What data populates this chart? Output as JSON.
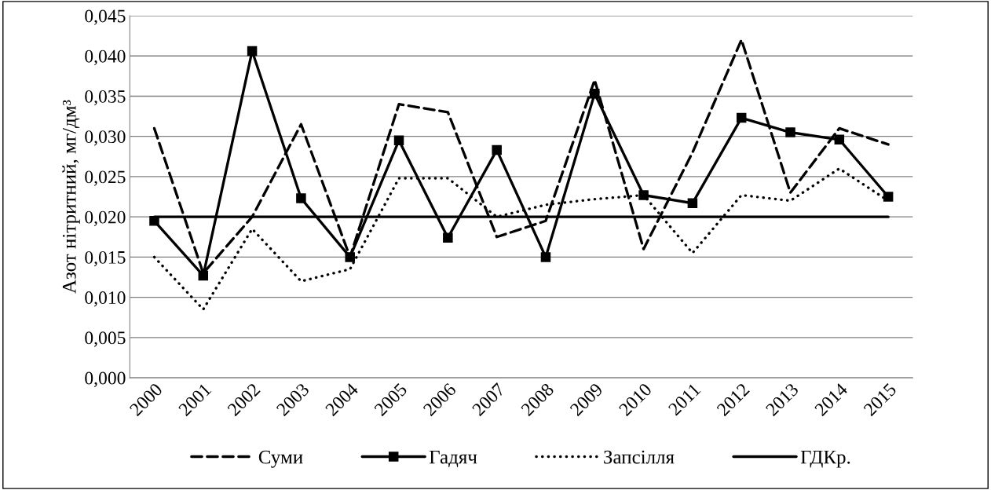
{
  "chart_data": {
    "type": "line",
    "ylabel": "Азот нітритний, мг/дм³",
    "categories": [
      "2000",
      "2001",
      "2002",
      "2003",
      "2004",
      "2005",
      "2006",
      "2007",
      "2008",
      "2009",
      "2010",
      "2011",
      "2012",
      "2013",
      "2014",
      "2015"
    ],
    "series": [
      {
        "name": "Суми",
        "color": "#000000",
        "line_style": "dashed",
        "marker": "none",
        "values": [
          0.031,
          0.013,
          0.02,
          0.0315,
          0.015,
          0.034,
          0.033,
          0.0175,
          0.0195,
          0.037,
          0.016,
          0.028,
          0.042,
          0.023,
          0.031,
          0.029
        ]
      },
      {
        "name": "Гадяч",
        "color": "#000000",
        "line_style": "solid",
        "marker": "square",
        "values": [
          0.0195,
          0.0127,
          0.0406,
          0.0223,
          0.015,
          0.0295,
          0.0174,
          0.0283,
          0.015,
          0.0353,
          0.0227,
          0.0217,
          0.0323,
          0.0305,
          0.0296,
          0.0225
        ]
      },
      {
        "name": "Запсілля",
        "color": "#000000",
        "line_style": "dotted",
        "marker": "none",
        "values": [
          0.015,
          0.0085,
          0.0185,
          0.012,
          0.0135,
          0.0248,
          0.0248,
          0.02,
          0.0215,
          0.0222,
          0.0227,
          0.0155,
          0.0227,
          0.022,
          0.026,
          0.022
        ]
      },
      {
        "name": "ГДКр.",
        "color": "#000000",
        "line_style": "solid",
        "marker": "none",
        "values": [
          0.02,
          0.02,
          0.02,
          0.02,
          0.02,
          0.02,
          0.02,
          0.02,
          0.02,
          0.02,
          0.02,
          0.02,
          0.02,
          0.02,
          0.02,
          0.02
        ]
      }
    ],
    "ylim": [
      0,
      0.045
    ],
    "yticks": [
      {
        "value": 0,
        "label": "0,000"
      },
      {
        "value": 0.005,
        "label": "0,005"
      },
      {
        "value": 0.01,
        "label": "0,010"
      },
      {
        "value": 0.015,
        "label": "0,015"
      },
      {
        "value": 0.02,
        "label": "0,020"
      },
      {
        "value": 0.025,
        "label": "0,025"
      },
      {
        "value": 0.03,
        "label": "0,030"
      },
      {
        "value": 0.035,
        "label": "0,035"
      },
      {
        "value": 0.04,
        "label": "0,040"
      },
      {
        "value": 0.045,
        "label": "0,045"
      }
    ],
    "grid": "y",
    "legend": "bottom"
  }
}
